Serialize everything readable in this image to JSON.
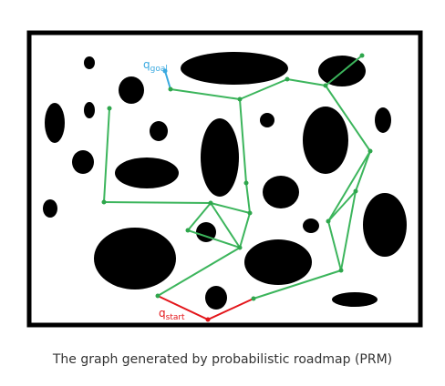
{
  "labels": {
    "goal_main": "q",
    "goal_sub": "goal",
    "start_main": "q",
    "start_sub": "start",
    "caption": "The graph generated by probabilistic roadmap (PRM)"
  },
  "colors": {
    "background": "#ffffff",
    "border": "#000000",
    "obstacle": "#000000",
    "edge": "#3cb55c",
    "node": "#2ea64c",
    "goal": "#3aa9e0",
    "start": "#e3151a",
    "caption_text": "#333333"
  },
  "graph": {
    "node_count": 21,
    "edge_count": 28
  }
}
